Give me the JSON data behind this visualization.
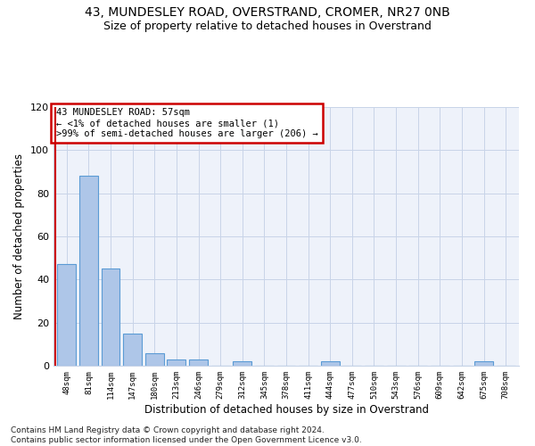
{
  "title1": "43, MUNDESLEY ROAD, OVERSTRAND, CROMER, NR27 0NB",
  "title2": "Size of property relative to detached houses in Overstrand",
  "xlabel": "Distribution of detached houses by size in Overstrand",
  "ylabel": "Number of detached properties",
  "bar_labels": [
    "48sqm",
    "81sqm",
    "114sqm",
    "147sqm",
    "180sqm",
    "213sqm",
    "246sqm",
    "279sqm",
    "312sqm",
    "345sqm",
    "378sqm",
    "411sqm",
    "444sqm",
    "477sqm",
    "510sqm",
    "543sqm",
    "576sqm",
    "609sqm",
    "642sqm",
    "675sqm",
    "708sqm"
  ],
  "bar_values": [
    47,
    88,
    45,
    15,
    6,
    3,
    3,
    0,
    2,
    0,
    0,
    0,
    2,
    0,
    0,
    0,
    0,
    0,
    0,
    2,
    0
  ],
  "bar_color": "#aec6e8",
  "bar_edge_color": "#5b9bd5",
  "red_line_x": -0.5,
  "red_line_color": "#cc0000",
  "ylim": [
    0,
    120
  ],
  "yticks": [
    0,
    20,
    40,
    60,
    80,
    100,
    120
  ],
  "grid_color": "#c8d4e8",
  "background_color": "#eef2fa",
  "annotation_box_text": "43 MUNDESLEY ROAD: 57sqm\n← <1% of detached houses are smaller (1)\n>99% of semi-detached houses are larger (206) →",
  "annotation_box_color": "white",
  "annotation_box_edgecolor": "#cc0000",
  "footnote": "Contains HM Land Registry data © Crown copyright and database right 2024.\nContains public sector information licensed under the Open Government Licence v3.0.",
  "title1_fontsize": 10,
  "title2_fontsize": 9,
  "xlabel_fontsize": 8.5,
  "ylabel_fontsize": 8.5,
  "annotation_fontsize": 7.5,
  "footnote_fontsize": 6.5
}
